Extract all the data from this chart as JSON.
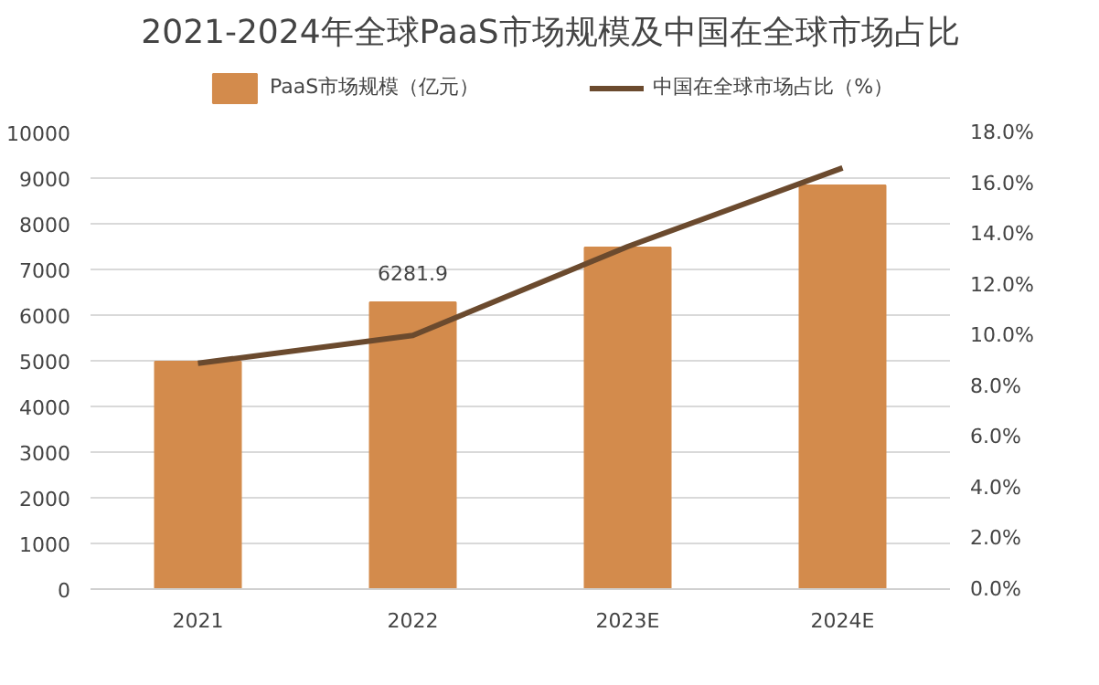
{
  "chart_data": {
    "type": "bar",
    "title": "2021-2024年全球PaaS市场规模及中国在全球市场占比",
    "categories": [
      "2021",
      "2022",
      "2023E",
      "2024E"
    ],
    "series": [
      {
        "name": "PaaS市场规模（亿元）",
        "color": "#d38b4c",
        "values": [
          4980,
          6281.9,
          7480,
          8840
        ],
        "value_labels": [
          null,
          "6281.9",
          null,
          null
        ]
      },
      {
        "name": "中国在全球市场占比（%）",
        "type": "line",
        "axis": "y2",
        "color": "#6b4a2e",
        "values": [
          8.9,
          10.0,
          13.5,
          16.6
        ],
        "marker": "none"
      }
    ],
    "ylim": [
      0,
      10000
    ],
    "yticks": [
      0,
      1000,
      2000,
      3000,
      4000,
      5000,
      6000,
      7000,
      8000,
      9000,
      10000
    ],
    "y2lim": [
      0,
      18
    ],
    "y2ticks": [
      {
        "value": 0,
        "label": "0.0%"
      },
      {
        "value": 2,
        "label": "2.0%"
      },
      {
        "value": 4,
        "label": "4.0%"
      },
      {
        "value": 6,
        "label": "6.0%"
      },
      {
        "value": 8,
        "label": "8.0%"
      },
      {
        "value": 10,
        "label": "10.0%"
      },
      {
        "value": 12,
        "label": "12.0%"
      },
      {
        "value": 14,
        "label": "14.0%"
      },
      {
        "value": 16,
        "label": "16.0%"
      },
      {
        "value": 18,
        "label": "18.0%"
      }
    ],
    "grid": "y",
    "legend": "top"
  }
}
